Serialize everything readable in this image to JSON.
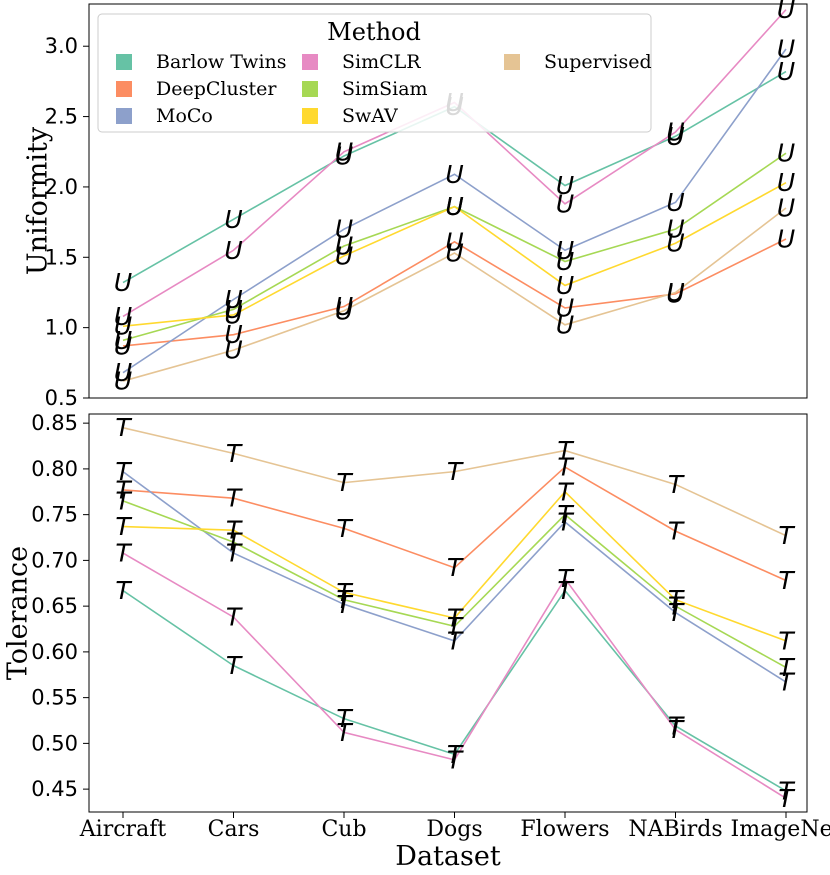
{
  "chart_data": [
    {
      "type": "line",
      "panel": "top",
      "xlabel": "",
      "ylabel": "Uniformity",
      "marker": "U",
      "categories": [
        "Aircraft",
        "Cars",
        "Cub",
        "Dogs",
        "Flowers",
        "NABirds",
        "ImageNet"
      ],
      "ylim": [
        0.5,
        3.3
      ],
      "yticks": [
        "0.5",
        "1.0",
        "1.5",
        "2.0",
        "2.5",
        "3.0"
      ],
      "grid": false,
      "legend": {
        "title": "Method",
        "placement": "top-left",
        "entries": [
          "Barlow Twins",
          "DeepCluster",
          "MoCo",
          "SimCLR",
          "SimSiam",
          "SwAV",
          "Supervised"
        ]
      },
      "series": [
        {
          "name": "Barlow Twins",
          "color": "#66c2a5",
          "values": [
            1.32,
            1.77,
            2.22,
            2.57,
            2.01,
            2.36,
            2.82
          ]
        },
        {
          "name": "DeepCluster",
          "color": "#fc8d62",
          "values": [
            0.87,
            0.95,
            1.15,
            1.61,
            1.14,
            1.24,
            1.63
          ]
        },
        {
          "name": "MoCo",
          "color": "#8da0cb",
          "values": [
            0.68,
            1.2,
            1.7,
            2.09,
            1.55,
            1.89,
            2.98
          ]
        },
        {
          "name": "SimCLR",
          "color": "#e78ac3",
          "values": [
            1.08,
            1.55,
            2.25,
            2.6,
            1.88,
            2.39,
            3.26
          ]
        },
        {
          "name": "SimSiam",
          "color": "#a6d854",
          "values": [
            0.91,
            1.13,
            1.58,
            1.86,
            1.47,
            1.7,
            2.24
          ]
        },
        {
          "name": "SwAV",
          "color": "#ffd92f",
          "values": [
            1.01,
            1.09,
            1.51,
            1.86,
            1.3,
            1.6,
            2.03
          ]
        },
        {
          "name": "Supervised",
          "color": "#e5c494",
          "values": [
            0.62,
            0.84,
            1.12,
            1.53,
            1.02,
            1.25,
            1.85
          ]
        }
      ]
    },
    {
      "type": "line",
      "panel": "bottom",
      "xlabel": "Dataset",
      "ylabel": "Tolerance",
      "marker": "T",
      "categories": [
        "Aircraft",
        "Cars",
        "Cub",
        "Dogs",
        "Flowers",
        "NABirds",
        "ImageNet"
      ],
      "ylim": [
        0.425,
        0.86
      ],
      "yticks": [
        "0.45",
        "0.50",
        "0.55",
        "0.60",
        "0.65",
        "0.70",
        "0.75",
        "0.80",
        "0.85"
      ],
      "grid": false,
      "series": [
        {
          "name": "Barlow Twins",
          "color": "#66c2a5",
          "values": [
            0.667,
            0.585,
            0.527,
            0.488,
            0.667,
            0.519,
            0.448
          ]
        },
        {
          "name": "DeepCluster",
          "color": "#fc8d62",
          "values": [
            0.777,
            0.768,
            0.735,
            0.692,
            0.802,
            0.732,
            0.678
          ]
        },
        {
          "name": "MoCo",
          "color": "#8da0cb",
          "values": [
            0.797,
            0.708,
            0.652,
            0.612,
            0.742,
            0.643,
            0.567
          ]
        },
        {
          "name": "SimCLR",
          "color": "#e78ac3",
          "values": [
            0.708,
            0.638,
            0.512,
            0.482,
            0.68,
            0.515,
            0.44
          ]
        },
        {
          "name": "SimSiam",
          "color": "#a6d854",
          "values": [
            0.765,
            0.72,
            0.657,
            0.628,
            0.75,
            0.65,
            0.583
          ]
        },
        {
          "name": "SwAV",
          "color": "#ffd92f",
          "values": [
            0.737,
            0.733,
            0.665,
            0.637,
            0.775,
            0.657,
            0.612
          ]
        },
        {
          "name": "Supervised",
          "color": "#e5c494",
          "values": [
            0.845,
            0.817,
            0.785,
            0.797,
            0.82,
            0.783,
            0.727
          ]
        }
      ]
    }
  ]
}
